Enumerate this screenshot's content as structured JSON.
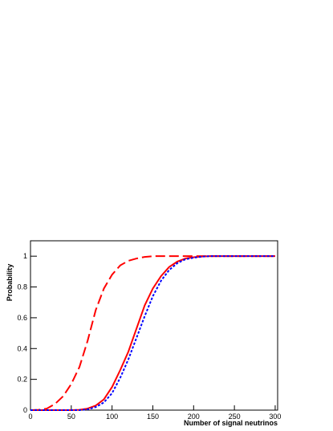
{
  "chart_data": {
    "type": "line",
    "x_label": "Number of signal neutrinos",
    "y_label": "Probability",
    "x": [
      0,
      10,
      20,
      30,
      40,
      50,
      60,
      70,
      80,
      90,
      100,
      110,
      120,
      130,
      140,
      150,
      160,
      170,
      180,
      190,
      200,
      210,
      220,
      230,
      240,
      250,
      260,
      270,
      280,
      290,
      300
    ],
    "series": [
      {
        "color": "#ff0000",
        "style": "dashed",
        "values": [
          0,
          0.002,
          0.01,
          0.04,
          0.09,
          0.17,
          0.28,
          0.45,
          0.65,
          0.79,
          0.88,
          0.94,
          0.97,
          0.985,
          0.995,
          1,
          1,
          1,
          1,
          1,
          1,
          1,
          1,
          1,
          1,
          1,
          1,
          1,
          1,
          1,
          1
        ]
      },
      {
        "color": "#ff0000",
        "style": "solid",
        "values": [
          0,
          0,
          0,
          0,
          0,
          0,
          0.002,
          0.01,
          0.03,
          0.07,
          0.15,
          0.26,
          0.38,
          0.53,
          0.68,
          0.79,
          0.87,
          0.93,
          0.965,
          0.985,
          0.993,
          0.998,
          1,
          1,
          1,
          1,
          1,
          1,
          1,
          1,
          1
        ]
      },
      {
        "color": "#0000ff",
        "style": "dotted",
        "values": [
          0,
          0,
          0,
          0,
          0,
          0,
          0,
          0.005,
          0.02,
          0.05,
          0.11,
          0.21,
          0.33,
          0.47,
          0.61,
          0.74,
          0.84,
          0.91,
          0.955,
          0.98,
          0.99,
          0.997,
          1,
          1,
          1,
          1,
          1,
          1,
          1,
          1,
          1
        ]
      }
    ],
    "xlim": [
      0,
      303
    ],
    "ylim": [
      0,
      1.1
    ],
    "xticks": [
      0,
      50,
      100,
      150,
      200,
      250,
      300
    ],
    "yticks": [
      0,
      0.2,
      0.4,
      0.6,
      0.8,
      1
    ]
  }
}
